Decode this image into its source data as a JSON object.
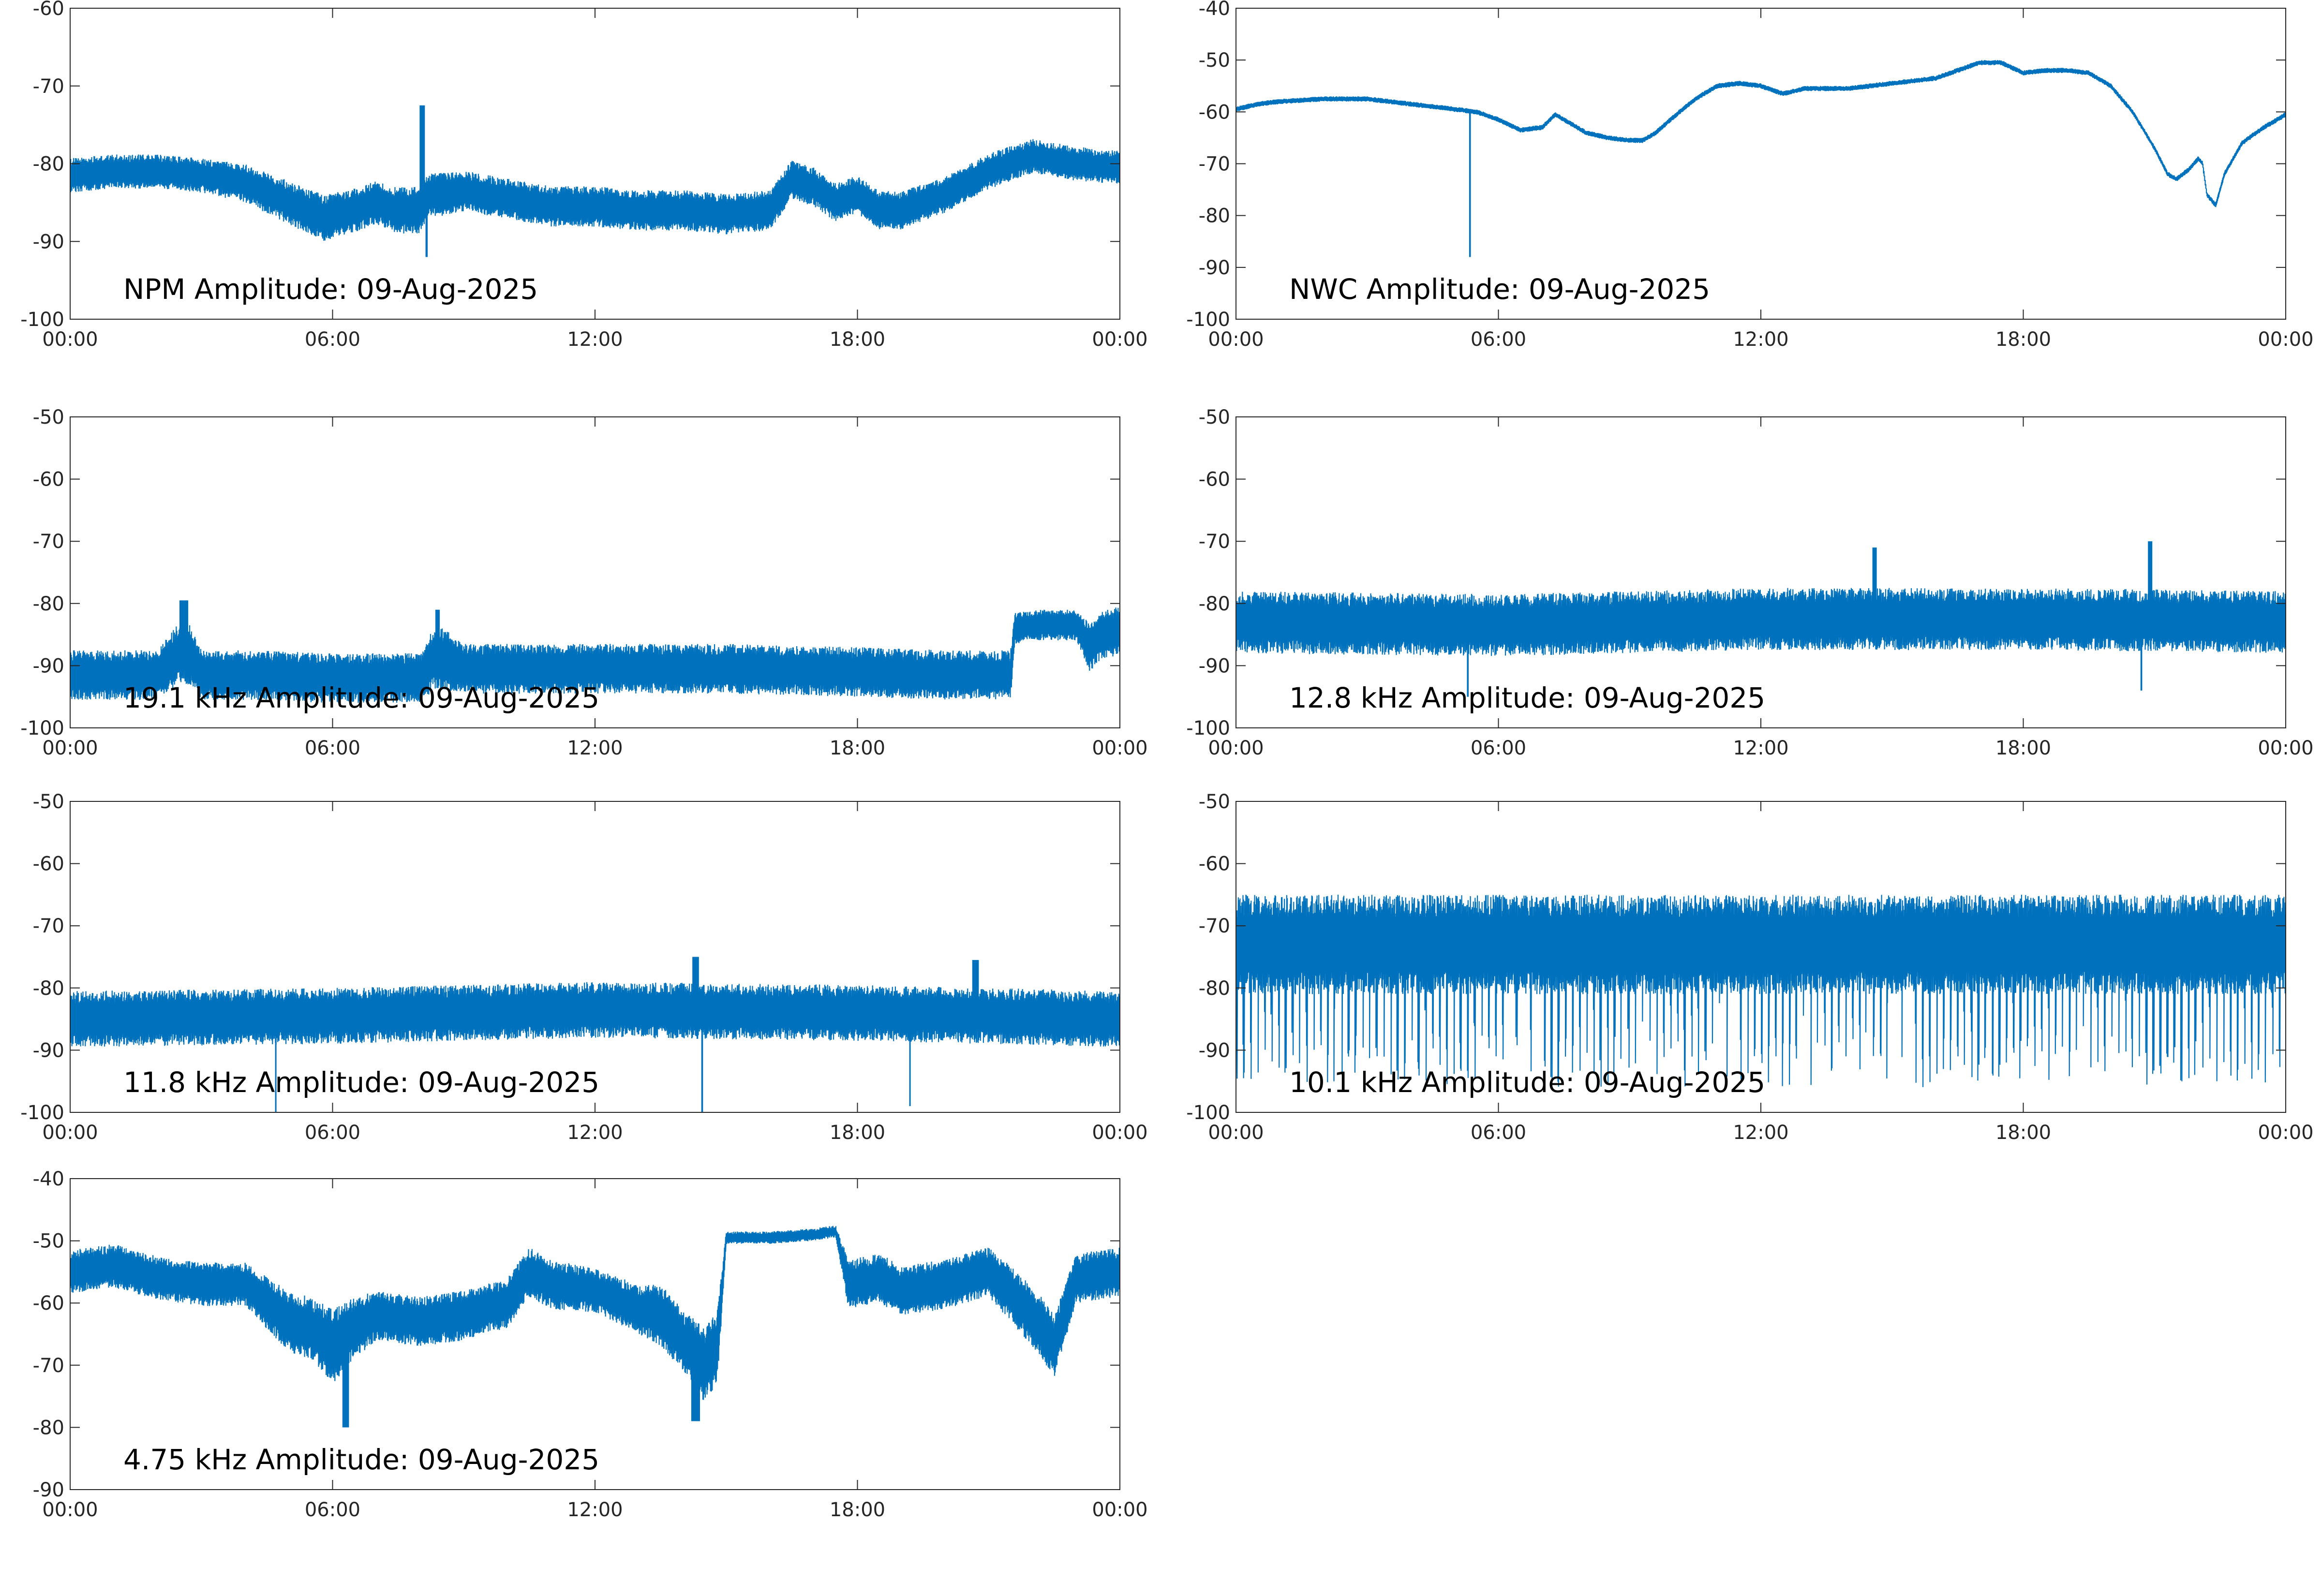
{
  "page": {
    "background": "#ffffff"
  },
  "style": {
    "line_color": "#0072bd",
    "axis_color": "#262626",
    "tick_text_color": "#262626",
    "label_color": "#000000"
  },
  "chart_data": [
    {
      "type": "line",
      "annotation": "NPM Amplitude: 09-Aug-2025",
      "xlim": [
        0,
        24
      ],
      "ylim": [
        -100,
        -60
      ],
      "xticks": [
        0,
        6,
        12,
        18,
        24
      ],
      "xtick_labels": [
        "00:00",
        "06:00",
        "12:00",
        "18:00",
        "00:00"
      ],
      "yticks": [
        -60,
        -70,
        -80,
        -90,
        -100
      ],
      "ytick_labels": [
        "-60",
        "-70",
        "-80",
        "-90",
        "-100"
      ],
      "series": [
        {
          "x": [
            0,
            1,
            2,
            3,
            4,
            5,
            5.8,
            6.5,
            7,
            7.5,
            8,
            8.2,
            8.5,
            9,
            10,
            11,
            12,
            13,
            14,
            15,
            16,
            16.5,
            17,
            17.5,
            18,
            18.5,
            19,
            20,
            21,
            22,
            23,
            24
          ],
          "y": [
            -81.5,
            -81,
            -81,
            -81.5,
            -82.5,
            -85,
            -87,
            -86,
            -85,
            -86,
            -86,
            -84,
            -84,
            -83.5,
            -84.5,
            -85.5,
            -85.5,
            -86,
            -86,
            -86.5,
            -86,
            -82,
            -83,
            -85,
            -84,
            -86,
            -86,
            -84,
            -81,
            -79,
            -80,
            -80.5
          ],
          "spread": [
            2.2,
            2.2,
            2.2,
            2.2,
            2.5,
            2.8,
            3.0,
            2.8,
            2.8,
            3.0,
            3.0,
            2.8,
            2.8,
            2.6,
            2.6,
            2.6,
            2.6,
            2.6,
            2.6,
            2.6,
            2.6,
            2.5,
            2.5,
            2.5,
            2.5,
            2.5,
            2.5,
            2.3,
            2.3,
            2.2,
            2.2,
            2.2
          ],
          "events": [
            {
              "x": 8.05,
              "y": -72.5,
              "width": 0.12
            },
            {
              "x": 8.15,
              "y": -92,
              "width": 0.05
            }
          ]
        }
      ]
    },
    {
      "type": "line",
      "annotation": "NWC Amplitude: 09-Aug-2025",
      "xlim": [
        0,
        24
      ],
      "ylim": [
        -100,
        -40
      ],
      "xticks": [
        0,
        6,
        12,
        18,
        24
      ],
      "xtick_labels": [
        "00:00",
        "06:00",
        "12:00",
        "18:00",
        "00:00"
      ],
      "yticks": [
        -40,
        -50,
        -60,
        -70,
        -80,
        -90,
        -100
      ],
      "ytick_labels": [
        "-40",
        "-50",
        "-60",
        "-70",
        "-80",
        "-90",
        "-100"
      ],
      "series": [
        {
          "x": [
            0,
            0.5,
            1,
            2,
            3,
            4,
            5,
            5.5,
            6,
            6.5,
            7,
            7.3,
            7.6,
            8,
            8.5,
            9,
            9.3,
            9.6,
            10,
            10.5,
            11,
            11.5,
            12,
            12.5,
            13,
            14,
            15,
            16,
            16.5,
            17,
            17.5,
            18,
            18.5,
            19,
            19.5,
            20,
            20.5,
            21,
            21.3,
            21.5,
            21.8,
            22,
            22.1,
            22.2,
            22.4,
            22.6,
            23,
            23.5,
            24
          ],
          "y": [
            -59.5,
            -58.5,
            -58,
            -57.5,
            -57.5,
            -58.5,
            -59.5,
            -60,
            -61.5,
            -63.5,
            -63,
            -60.5,
            -62,
            -64,
            -65,
            -65.5,
            -65.5,
            -64,
            -61,
            -57.5,
            -55,
            -54.5,
            -55,
            -56.5,
            -55.5,
            -55.5,
            -54.5,
            -53.5,
            -52,
            -50.5,
            -50.5,
            -52.5,
            -52,
            -52,
            -52.5,
            -55,
            -60,
            -67,
            -72,
            -73,
            -71,
            -69,
            -70,
            -76,
            -78,
            -72,
            -66,
            -63,
            -60.5
          ],
          "spread": [
            0.5
          ],
          "events": [
            {
              "x": 5.35,
              "y": -88,
              "width": 0.04
            }
          ]
        }
      ]
    },
    {
      "type": "line",
      "annotation": "19.1 kHz Amplitude: 09-Aug-2025",
      "xlim": [
        0,
        24
      ],
      "ylim": [
        -100,
        -50
      ],
      "xticks": [
        0,
        6,
        12,
        18,
        24
      ],
      "xtick_labels": [
        "00:00",
        "06:00",
        "12:00",
        "18:00",
        "00:00"
      ],
      "yticks": [
        -50,
        -60,
        -70,
        -80,
        -90,
        -100
      ],
      "ytick_labels": [
        "-50",
        "-60",
        "-70",
        "-80",
        "-90",
        "-100"
      ],
      "series": [
        {
          "x": [
            0,
            2,
            2.5,
            2.7,
            3,
            4,
            6,
            8,
            8.3,
            8.6,
            9,
            12,
            15,
            18,
            20,
            21.5,
            21.6,
            22,
            23,
            23.3,
            23.6,
            24
          ],
          "y": [
            -91.5,
            -91.5,
            -88,
            -88,
            -91.5,
            -91.5,
            -92,
            -92,
            -89,
            -89,
            -90.5,
            -90.5,
            -90.5,
            -91,
            -91.5,
            -91.5,
            -84,
            -83.5,
            -83.5,
            -87,
            -85,
            -84.5
          ],
          "spread": [
            4,
            4,
            5,
            5,
            4,
            4,
            4,
            4,
            5,
            5,
            4,
            4,
            4,
            4,
            4,
            4,
            2.5,
            2.5,
            2.5,
            4,
            4,
            4
          ],
          "events": [
            {
              "x": 2.6,
              "y": -79.5,
              "width": 0.2
            },
            {
              "x": 8.4,
              "y": -81,
              "width": 0.1
            }
          ]
        }
      ]
    },
    {
      "type": "line",
      "annotation": "12.8 kHz Amplitude: 09-Aug-2025",
      "xlim": [
        0,
        24
      ],
      "ylim": [
        -100,
        -50
      ],
      "xticks": [
        0,
        6,
        12,
        18,
        24
      ],
      "xtick_labels": [
        "00:00",
        "06:00",
        "12:00",
        "18:00",
        "00:00"
      ],
      "yticks": [
        -50,
        -60,
        -70,
        -80,
        -90,
        -100
      ],
      "ytick_labels": [
        "-50",
        "-60",
        "-70",
        "-80",
        "-90",
        "-100"
      ],
      "series": [
        {
          "x": [
            0,
            6,
            12,
            18,
            24
          ],
          "y": [
            -83,
            -83.5,
            -82.5,
            -82.5,
            -83
          ],
          "spread": [
            5
          ],
          "events": [
            {
              "x": 14.6,
              "y": -71,
              "width": 0.1
            },
            {
              "x": 20.9,
              "y": -70,
              "width": 0.1
            },
            {
              "x": 5.3,
              "y": -95,
              "width": 0.04
            },
            {
              "x": 20.7,
              "y": -94,
              "width": 0.04
            }
          ]
        }
      ]
    },
    {
      "type": "line",
      "annotation": "11.8 kHz Amplitude: 09-Aug-2025",
      "xlim": [
        0,
        24
      ],
      "ylim": [
        -100,
        -50
      ],
      "xticks": [
        0,
        6,
        12,
        18,
        24
      ],
      "xtick_labels": [
        "00:00",
        "06:00",
        "12:00",
        "18:00",
        "00:00"
      ],
      "yticks": [
        -50,
        -60,
        -70,
        -80,
        -90,
        -100
      ],
      "ytick_labels": [
        "-50",
        "-60",
        "-70",
        "-80",
        "-90",
        "-100"
      ],
      "series": [
        {
          "x": [
            0,
            6,
            12,
            18,
            24
          ],
          "y": [
            -85,
            -84.5,
            -83.5,
            -84,
            -85
          ],
          "spread": [
            4.5
          ],
          "events": [
            {
              "x": 14.3,
              "y": -75,
              "width": 0.15
            },
            {
              "x": 20.7,
              "y": -75.5,
              "width": 0.15
            },
            {
              "x": 14.45,
              "y": -100,
              "width": 0.04
            },
            {
              "x": 4.7,
              "y": -100,
              "width": 0.03
            },
            {
              "x": 19.2,
              "y": -99,
              "width": 0.03
            }
          ]
        }
      ]
    },
    {
      "type": "line",
      "annotation": "10.1 kHz Amplitude: 09-Aug-2025",
      "xlim": [
        0,
        24
      ],
      "ylim": [
        -100,
        -50
      ],
      "xticks": [
        0,
        6,
        12,
        18,
        24
      ],
      "xtick_labels": [
        "00:00",
        "06:00",
        "12:00",
        "18:00",
        "00:00"
      ],
      "yticks": [
        -50,
        -60,
        -70,
        -80,
        -90,
        -100
      ],
      "ytick_labels": [
        "-50",
        "-60",
        "-70",
        "-80",
        "-90",
        "-100"
      ],
      "series": [
        {
          "x": [
            0,
            12,
            24
          ],
          "y": [
            -73,
            -73,
            -73
          ],
          "spread": [
            8
          ],
          "dips": {
            "period": 0.16,
            "depth": -96
          },
          "events": []
        }
      ]
    },
    {
      "type": "line",
      "annotation": "4.75 kHz Amplitude: 09-Aug-2025",
      "xlim": [
        0,
        24
      ],
      "ylim": [
        -90,
        -40
      ],
      "xticks": [
        0,
        6,
        12,
        18,
        24
      ],
      "xtick_labels": [
        "00:00",
        "06:00",
        "12:00",
        "18:00",
        "00:00"
      ],
      "yticks": [
        -40,
        -50,
        -60,
        -70,
        -80,
        -90
      ],
      "ytick_labels": [
        "-40",
        "-50",
        "-60",
        "-70",
        "-80",
        "-90"
      ],
      "series": [
        {
          "x": [
            0,
            1,
            2,
            3,
            4,
            5,
            5.5,
            6,
            6.5,
            7,
            8,
            9,
            10,
            10.5,
            11,
            12,
            13,
            13.5,
            14,
            14.5,
            14.8,
            15,
            16,
            17,
            17.5,
            17.8,
            18.5,
            19,
            20,
            21,
            22,
            22.5,
            23,
            24
          ],
          "y": [
            -55,
            -54,
            -56,
            -57,
            -57,
            -63,
            -64,
            -67,
            -64,
            -62,
            -63,
            -62,
            -60,
            -55,
            -57,
            -58,
            -61,
            -62,
            -66,
            -70,
            -67,
            -49.5,
            -49.5,
            -49,
            -48.5,
            -57,
            -56,
            -58,
            -57,
            -55,
            -62,
            -67,
            -56,
            -55
          ],
          "spread": [
            3.5,
            3.5,
            3.5,
            3.5,
            3.5,
            5,
            5,
            6,
            5,
            4,
            4,
            4,
            4,
            4,
            4,
            3.5,
            4,
            5,
            5,
            6,
            6,
            1,
            1,
            1,
            1,
            4,
            4,
            4,
            4,
            4,
            5,
            5,
            4,
            4
          ],
          "events": [
            {
              "x": 6.3,
              "y": -80,
              "width": 0.15
            },
            {
              "x": 14.3,
              "y": -79,
              "width": 0.2
            }
          ]
        }
      ]
    }
  ]
}
